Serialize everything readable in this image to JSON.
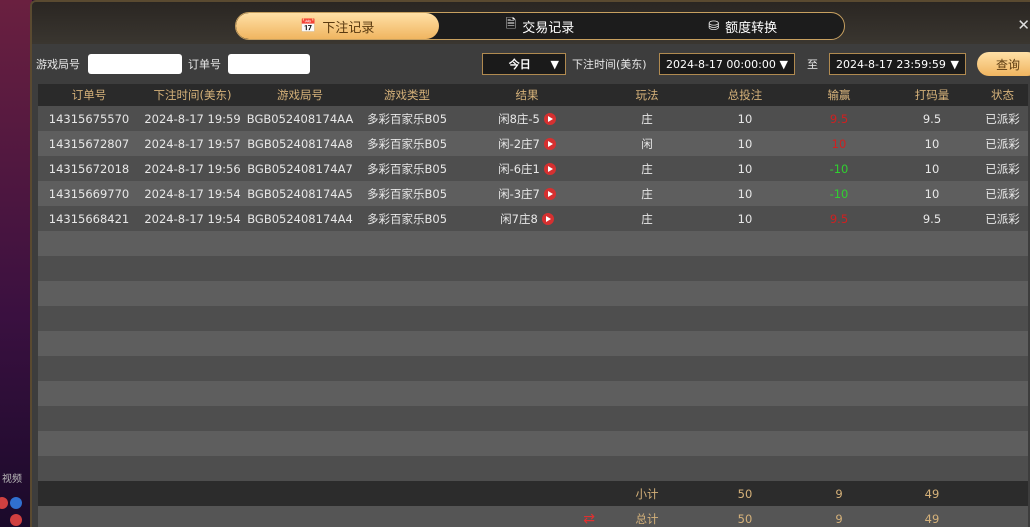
{
  "background": {
    "side_text": "视频"
  },
  "tabs": [
    {
      "label": "下注记录",
      "icon": "calendar-icon",
      "active": true
    },
    {
      "label": "交易记录",
      "icon": "document-icon"
    },
    {
      "label": "额度转换",
      "icon": "coin-transfer-icon"
    }
  ],
  "filters": {
    "round_label": "游戏局号",
    "round_value": "",
    "order_label": "订单号",
    "order_value": "",
    "range": "今日",
    "time_label": "下注时间(美东)",
    "start": "2024-8-17 00:00:00",
    "to_label": "至",
    "end": "2024-8-17 23:59:59",
    "query": "查询"
  },
  "columns": [
    "订单号",
    "下注时间(美东)",
    "游戏局号",
    "游戏类型",
    "结果",
    "玩法",
    "总投注",
    "输赢",
    "打码量",
    "状态"
  ],
  "rows": [
    [
      "14315675570",
      "2024-8-17 19:59",
      "BGB052408174AA",
      "多彩百家乐B05",
      "闲8庄-5",
      "庄",
      "10",
      "9.5",
      "9.5",
      "已派彩"
    ],
    [
      "14315672807",
      "2024-8-17 19:57",
      "BGB052408174A8",
      "多彩百家乐B05",
      "闲-2庄7",
      "闲",
      "10",
      "10",
      "10",
      "已派彩"
    ],
    [
      "14315672018",
      "2024-8-17 19:56",
      "BGB052408174A7",
      "多彩百家乐B05",
      "闲-6庄1",
      "庄",
      "10",
      "-10",
      "10",
      "已派彩"
    ],
    [
      "14315669770",
      "2024-8-17 19:54",
      "BGB052408174A5",
      "多彩百家乐B05",
      "闲-3庄7",
      "庄",
      "10",
      "-10",
      "10",
      "已派彩"
    ],
    [
      "14315668421",
      "2024-8-17 19:54",
      "BGB052408174A4",
      "多彩百家乐B05",
      "闲7庄8",
      "庄",
      "10",
      "9.5",
      "9.5",
      "已派彩"
    ]
  ],
  "subtotal": {
    "label": "小计",
    "bet": "50",
    "win": "9",
    "valid": "49"
  },
  "total": {
    "label": "总计",
    "bet": "50",
    "win": "9",
    "valid": "49"
  },
  "colors": {
    "win": "#d02020",
    "loss": "#30d030",
    "accent": "#f0b560"
  }
}
